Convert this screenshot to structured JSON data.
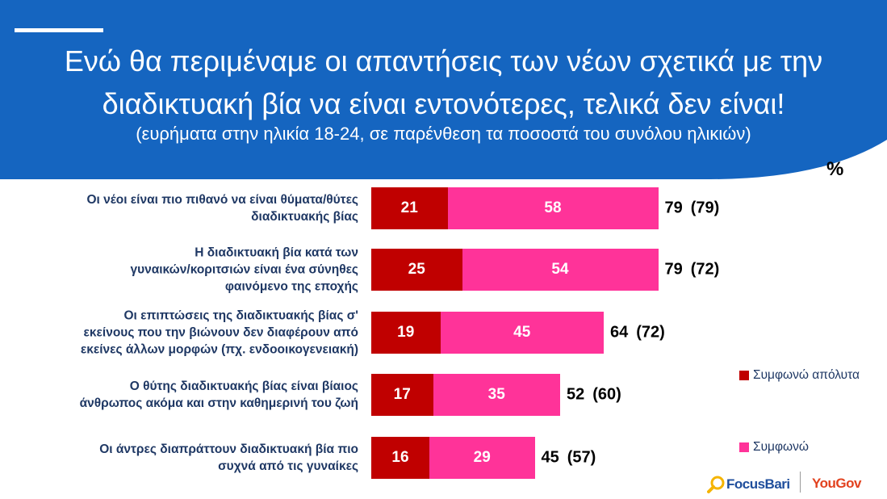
{
  "header": {
    "title_line1": "Ενώ θα περιμέναμε οι απαντήσεις των νέων σχετικά με την",
    "title_line2": "διαδικτυακή βία να είναι εντονότερες, τελικά δεν είναι!",
    "subtitle": "(ευρήματα στην ηλικία 18-24, σε παρένθεση τα ποσοστά του συνόλου ηλικιών)",
    "band_color": "#1565c0"
  },
  "chart_data": {
    "type": "bar",
    "orientation": "horizontal",
    "stacked": true,
    "unit": "%",
    "categories": [
      [
        "Οι νέοι είναι πιο πιθανό να είναι θύματα/θύτες",
        "διαδικτυακής βίας"
      ],
      [
        "Η διαδικτυακή βία κατά των",
        "γυναικών/κοριτσιών είναι ένα σύνηθες",
        "φαινόμενο της εποχής"
      ],
      [
        "Οι επιπτώσεις της διαδικτυακής βίας σ'",
        "εκείνους που την βιώνουν δεν διαφέρουν από",
        "εκείνες άλλων μορφών (πχ. ενδοοικογενειακή)"
      ],
      [
        "Ο θύτης διαδικτυακής βίας είναι βίαιος",
        "άνθρωπος ακόμα και στην καθημερινή του ζωή"
      ],
      [
        "Οι άντρες διαπράττουν διαδικτυακή βία πιο",
        "συχνά από τις γυναίκες"
      ]
    ],
    "series": [
      {
        "name": "Συμφωνώ απόλυτα",
        "color": "#c00000",
        "values": [
          21,
          25,
          19,
          17,
          16
        ]
      },
      {
        "name": "Συμφωνώ",
        "color": "#ff3399",
        "values": [
          58,
          54,
          45,
          35,
          29
        ]
      }
    ],
    "totals": [
      "79",
      "79",
      "64",
      "52",
      "45"
    ],
    "totals_all_ages": [
      "(79)",
      "(72)",
      "(72)",
      "(60)",
      "(57)"
    ],
    "legend_position": "right",
    "grid": false
  },
  "logos": {
    "focusbari": "FocusBari",
    "yougov": "YouGov"
  }
}
